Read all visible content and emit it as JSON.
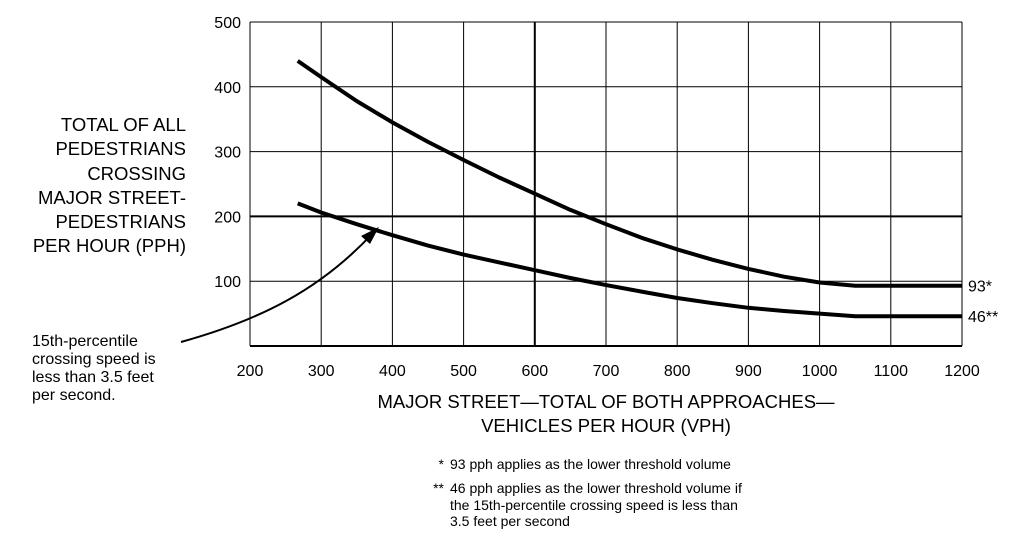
{
  "chart_data": {
    "type": "line",
    "xlabel": "MAJOR STREET—TOTAL OF BOTH APPROACHES—\nVEHICLES PER HOUR (VPH)",
    "ylabel": "TOTAL OF ALL\nPEDESTRIANS\nCROSSING\nMAJOR STREET-\nPEDESTRIANS\nPER HOUR (PPH)",
    "xlim": [
      200,
      1200
    ],
    "ylim": [
      0,
      500
    ],
    "x_ticks": [
      200,
      300,
      400,
      500,
      600,
      700,
      800,
      900,
      1000,
      1100,
      1200
    ],
    "y_ticks": [
      100,
      200,
      300,
      400,
      500
    ],
    "grid": true,
    "series": [
      {
        "end_label": "93*",
        "points": [
          [
            267,
            440
          ],
          [
            300,
            415
          ],
          [
            350,
            378
          ],
          [
            400,
            345
          ],
          [
            450,
            315
          ],
          [
            500,
            287
          ],
          [
            550,
            260
          ],
          [
            600,
            235
          ],
          [
            650,
            210
          ],
          [
            700,
            188
          ],
          [
            750,
            167
          ],
          [
            800,
            149
          ],
          [
            850,
            133
          ],
          [
            900,
            119
          ],
          [
            950,
            107
          ],
          [
            1000,
            98
          ],
          [
            1050,
            93
          ],
          [
            1200,
            93
          ]
        ]
      },
      {
        "end_label": "46**",
        "points": [
          [
            267,
            220
          ],
          [
            300,
            206
          ],
          [
            350,
            188
          ],
          [
            400,
            171
          ],
          [
            450,
            155
          ],
          [
            500,
            141
          ],
          [
            550,
            129
          ],
          [
            600,
            117
          ],
          [
            650,
            105
          ],
          [
            700,
            94
          ],
          [
            750,
            84
          ],
          [
            800,
            74
          ],
          [
            850,
            66
          ],
          [
            900,
            59
          ],
          [
            950,
            54
          ],
          [
            1000,
            50
          ],
          [
            1050,
            46
          ],
          [
            1200,
            46
          ]
        ]
      }
    ],
    "annotation": "15th-percentile\ncrossing speed is\nless than 3.5 feet\nper second.",
    "footnotes": [
      {
        "mark": "*",
        "text": "93 pph applies as the lower threshold volume"
      },
      {
        "mark": "**",
        "text": "46 pph applies as the lower threshold volume if\nthe 15th-percentile crossing speed is less than\n3.5 feet per second"
      }
    ]
  }
}
